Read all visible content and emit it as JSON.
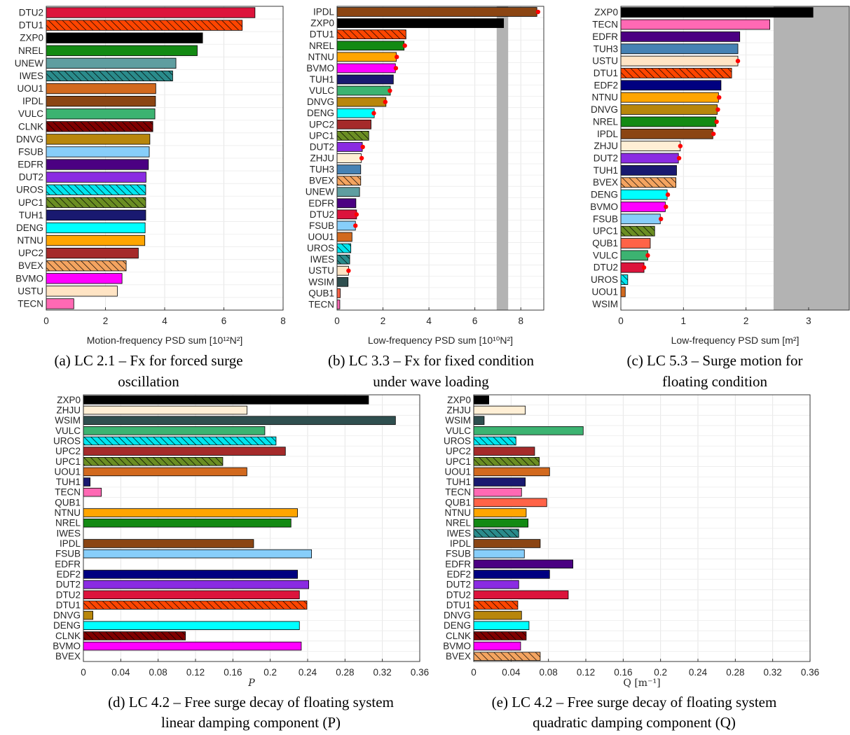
{
  "colors": {
    "DTU2": "#dc143c",
    "DTU1": "#ff4500",
    "ZXP0": "#000000",
    "NREL": "#138a13",
    "UNEW": "#5f9ea0",
    "IWES": "#2a8b8b",
    "UOU1": "#d2691e",
    "IPDL": "#8b4513",
    "VULC": "#3cb371",
    "CLNK": "#800000",
    "DNVG": "#b8860b",
    "FSUB": "#87cefa",
    "EDFR": "#4b0082",
    "DUT2": "#8a2be2",
    "UROS": "#00e5ee",
    "UPC1": "#6b8e23",
    "TUH1": "#191970",
    "DENG": "#00ffff",
    "NTNU": "#ffa500",
    "UPC2": "#a52a2a",
    "BVEX": "#f4a460",
    "BVMO": "#ff00ff",
    "USTU": "#ffe4c4",
    "TECN": "#ff69b4",
    "WSIM": "#2f4f4f",
    "QUB1": "#ff6347",
    "TUH3": "#4682b4",
    "EDF2": "#000080",
    "ZHJU": "#ffefd5"
  },
  "hatched": [
    "DTU1",
    "IWES",
    "CLNK",
    "UROS",
    "UPC1",
    "BVEX"
  ],
  "shade_color": "#b3b3b3",
  "marker_color": "#ff0000",
  "chart_data": [
    {
      "id": "a",
      "type": "bar",
      "orientation": "horizontal",
      "categories": [
        "DTU2",
        "DTU1",
        "ZXP0",
        "NREL",
        "UNEW",
        "IWES",
        "UOU1",
        "IPDL",
        "VULC",
        "CLNK",
        "DNVG",
        "FSUB",
        "EDFR",
        "DUT2",
        "UROS",
        "UPC1",
        "TUH1",
        "DENG",
        "NTNU",
        "UPC2",
        "BVEX",
        "BVMO",
        "USTU",
        "TECN"
      ],
      "values": [
        7.05,
        6.62,
        5.28,
        5.1,
        4.38,
        4.27,
        3.7,
        3.69,
        3.67,
        3.6,
        3.5,
        3.48,
        3.45,
        3.37,
        3.36,
        3.36,
        3.36,
        3.34,
        3.33,
        3.11,
        2.7,
        2.56,
        2.4,
        0.93
      ],
      "xlim": [
        0,
        8
      ],
      "xticks": [
        0,
        2,
        4,
        6,
        8
      ],
      "xlabel": "Motion-frequency PSD sum [10¹²N²]",
      "caption": [
        "(a) LC 2.1 – Fx for forced surge",
        "oscillation"
      ],
      "grid": true
    },
    {
      "id": "b",
      "type": "bar",
      "orientation": "horizontal",
      "categories": [
        "IPDL",
        "ZXP0",
        "DTU1",
        "NREL",
        "NTNU",
        "BVMO",
        "TUH1",
        "VULC",
        "DNVG",
        "DENG",
        "UPC2",
        "UPC1",
        "DUT2",
        "ZHJU",
        "TUH3",
        "BVEX",
        "UNEW",
        "EDFR",
        "DTU2",
        "FSUB",
        "UOU1",
        "UROS",
        "IWES",
        "USTU",
        "WSIM",
        "QUB1",
        "TECN"
      ],
      "values": [
        8.7,
        7.25,
        3.0,
        2.92,
        2.58,
        2.54,
        2.45,
        2.32,
        2.13,
        1.62,
        1.48,
        1.38,
        1.1,
        1.05,
        1.03,
        1.03,
        0.98,
        0.82,
        0.85,
        0.8,
        0.65,
        0.6,
        0.55,
        0.5,
        0.48,
        0.14,
        0.12
      ],
      "markers": [
        8.75,
        null,
        null,
        2.95,
        2.6,
        2.56,
        null,
        2.3,
        2.1,
        1.6,
        null,
        null,
        1.12,
        1.07,
        null,
        null,
        null,
        null,
        0.85,
        0.8,
        null,
        null,
        null,
        0.5,
        null,
        null,
        null
      ],
      "shaded_range": [
        6.95,
        7.45
      ],
      "xlim": [
        0,
        9
      ],
      "xticks": [
        0,
        2,
        4,
        6,
        8
      ],
      "xlabel": "Low-frequency PSD sum [10¹⁰N²]",
      "caption": [
        "(b) LC 3.3 – Fx for fixed condition",
        "under wave loading"
      ],
      "grid": true
    },
    {
      "id": "c",
      "type": "bar",
      "orientation": "horizontal",
      "categories": [
        "ZXP0",
        "TECN",
        "EDFR",
        "TUH3",
        "USTU",
        "DTU1",
        "EDF2",
        "NTNU",
        "DNVG",
        "NREL",
        "IPDL",
        "ZHJU",
        "DUT2",
        "TUH1",
        "BVEX",
        "DENG",
        "BVMO",
        "FSUB",
        "UPC1",
        "QUB1",
        "VULC",
        "DTU2",
        "UROS",
        "UOU1",
        "WSIM"
      ],
      "values": [
        3.07,
        2.38,
        1.9,
        1.87,
        1.87,
        1.77,
        1.6,
        1.56,
        1.54,
        1.52,
        1.47,
        0.95,
        0.92,
        0.89,
        0.88,
        0.74,
        0.71,
        0.63,
        0.54,
        0.47,
        0.43,
        0.37,
        0.11,
        0.07,
        0.0
      ],
      "markers": [
        null,
        null,
        null,
        null,
        1.87,
        null,
        null,
        1.57,
        1.55,
        1.53,
        1.48,
        0.95,
        0.93,
        null,
        null,
        0.75,
        0.72,
        0.64,
        null,
        null,
        0.43,
        0.37,
        null,
        null,
        null
      ],
      "shaded_range": [
        2.44,
        3.65
      ],
      "xlim": [
        0,
        3.65
      ],
      "xticks": [
        0,
        1,
        2,
        3
      ],
      "xlabel": "Low-frequency PSD sum [m²]",
      "caption": [
        "(c) LC 5.3 – Surge motion for",
        "floating condition"
      ],
      "grid": true
    },
    {
      "id": "d",
      "type": "bar",
      "orientation": "horizontal",
      "categories": [
        "ZXP0",
        "ZHJU",
        "WSIM",
        "VULC",
        "UROS",
        "UPC2",
        "UPC1",
        "UOU1",
        "TUH1",
        "TECN",
        "QUB1",
        "NTNU",
        "NREL",
        "IWES",
        "IPDL",
        "FSUB",
        "EDFR",
        "EDF2",
        "DUT2",
        "DTU2",
        "DTU1",
        "DNVG",
        "DENG",
        "CLNK",
        "BVMO",
        "BVEX"
      ],
      "values": [
        0.3052,
        0.1752,
        0.334,
        0.1942,
        0.2062,
        0.2162,
        0.1492,
        0.175,
        0.0072,
        0.0192,
        0.0,
        0.2292,
        0.2222,
        0.0,
        0.1822,
        0.2442,
        0.0,
        0.2292,
        0.2412,
        0.2312,
        0.2392,
        0.0102,
        0.2312,
        0.1092,
        0.2332,
        0.0
      ],
      "xlim": [
        0,
        0.36
      ],
      "xticks": [
        0,
        0.04,
        0.08,
        0.12,
        0.16,
        0.2,
        0.24,
        0.28,
        0.32,
        0.36
      ],
      "xtick_labels": [
        "0",
        "0.04",
        "0.08",
        "0.12",
        "0.16",
        "0.2",
        "0.24",
        "0.28",
        "0.32",
        "0.36"
      ],
      "xlabel": "P",
      "caption": [
        "(d) LC 4.2 – Free surge decay of floating system",
        "linear damping component (P)"
      ],
      "grid": true
    },
    {
      "id": "e",
      "type": "bar",
      "orientation": "horizontal",
      "categories": [
        "ZXP0",
        "ZHJU",
        "WSIM",
        "VULC",
        "UROS",
        "UPC2",
        "UPC1",
        "UOU1",
        "TUH1",
        "TECN",
        "QUB1",
        "NTNU",
        "NREL",
        "IWES",
        "IPDL",
        "FSUB",
        "EDFR",
        "EDF2",
        "DUT2",
        "DTU2",
        "DTU1",
        "DNVG",
        "DENG",
        "CLNK",
        "BVMO",
        "BVEX"
      ],
      "values": [
        0.0162,
        0.0552,
        0.0112,
        0.1172,
        0.0452,
        0.0652,
        0.0702,
        0.0812,
        0.0552,
        0.0512,
        0.0782,
        0.0562,
        0.0582,
        0.0482,
        0.0712,
        0.0542,
        0.1062,
        0.0812,
        0.0482,
        0.1012,
        0.0472,
        0.0512,
        0.0592,
        0.0562,
        0.0502,
        0.0712
      ],
      "xlim": [
        0,
        0.36
      ],
      "xticks": [
        0,
        0.04,
        0.08,
        0.12,
        0.16,
        0.2,
        0.24,
        0.28,
        0.32,
        0.36
      ],
      "xtick_labels": [
        "0",
        "0.04",
        "0.08",
        "0.12",
        "0.16",
        "0.2",
        "0.24",
        "0.28",
        "0.32",
        "0.36"
      ],
      "xlabel": "Q [m⁻¹]",
      "caption": [
        "(e) LC 4.2 – Free surge decay of floating system",
        "quadratic damping component (Q)"
      ],
      "grid": true
    }
  ]
}
